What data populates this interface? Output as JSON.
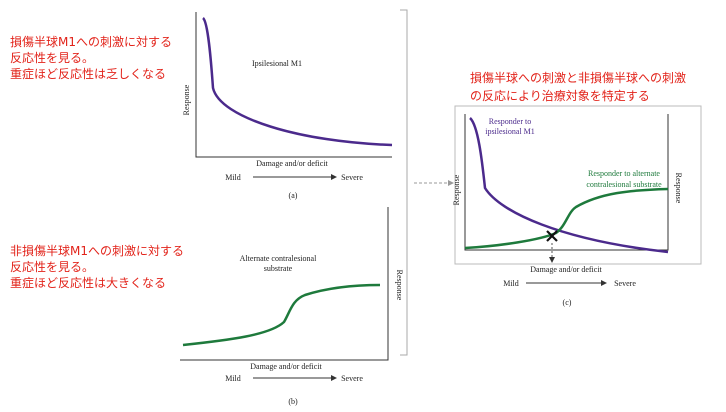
{
  "annotations": {
    "left_top": [
      "損傷半球M1への刺激に対する",
      "反応性を見る。",
      "重症ほど反応性は乏しくなる"
    ],
    "left_middle": [
      "非損傷半球M1への刺激に対する",
      "反応性を見る。",
      "重症ほど反応性は大きくなる"
    ],
    "right_top": [
      "損傷半球への刺激と非損傷半球への刺激",
      "の反応により治療対象を特定する"
    ]
  },
  "panels": [
    {
      "label": "(a)",
      "y_axis": "Response",
      "x_axis": "Damage and/or deficit",
      "x_from": "Mild",
      "x_to": "Severe",
      "curve_label": [
        "Ipsilesional M1"
      ]
    },
    {
      "label": "(b)",
      "y_axis": "Response",
      "x_axis": "Damage and/or deficit",
      "x_from": "Mild",
      "x_to": "Severe",
      "curve_label": [
        "Alternate contralesional",
        "substrate"
      ]
    },
    {
      "label": "(c)",
      "y_axis": "Response",
      "y2_axis": "Response",
      "x_axis": "Damage and/or deficit",
      "x_from": "Mild",
      "x_to": "Severe",
      "curve_label": [
        "Responder to",
        "ipsilesional M1"
      ],
      "curve2_label": [
        "Responder to alternate",
        "contralesional substrate"
      ]
    }
  ]
}
